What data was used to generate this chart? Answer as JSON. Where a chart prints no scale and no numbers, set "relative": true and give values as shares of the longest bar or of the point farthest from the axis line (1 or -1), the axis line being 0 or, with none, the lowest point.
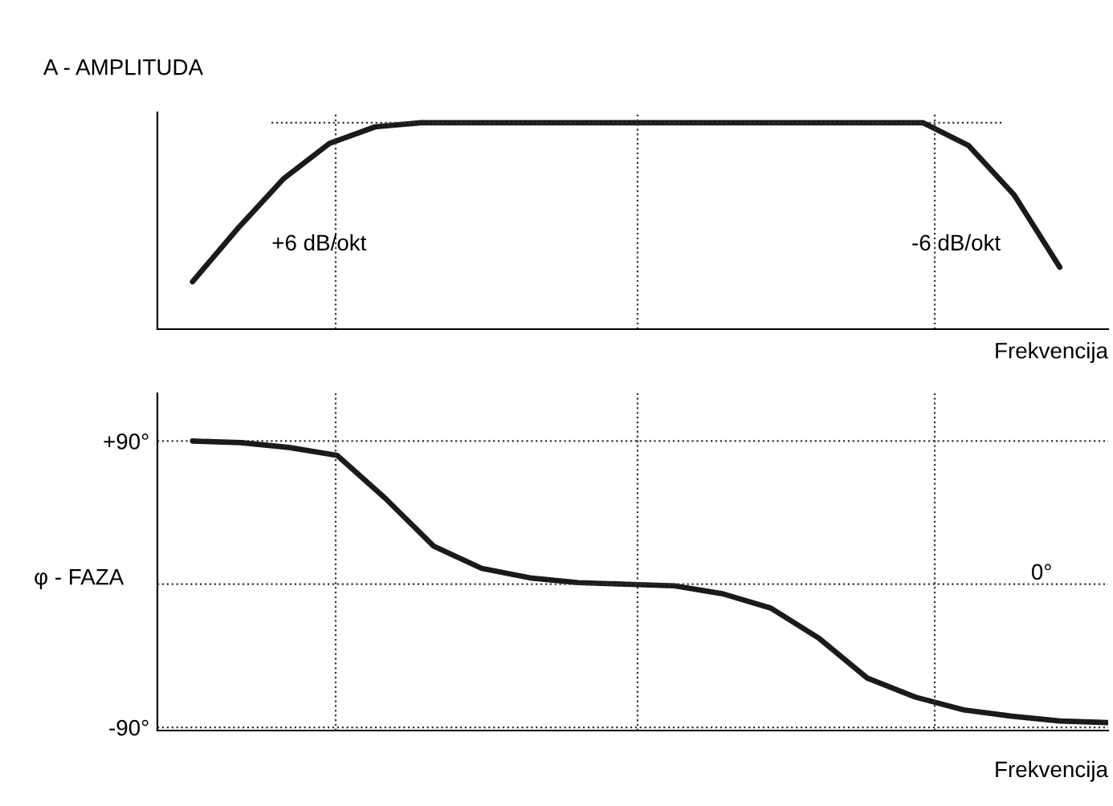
{
  "chart_data": [
    {
      "type": "line",
      "ylabel": "A - AMPLITUDA",
      "xlabel": "Frekvencija",
      "relative": true,
      "categories": [
        null,
        null,
        null,
        null,
        null,
        null,
        null,
        null,
        null,
        null,
        null,
        null,
        null,
        null,
        null,
        null,
        null,
        null,
        null,
        null
      ],
      "tick_labels": false,
      "marker": "none",
      "line_style": "solid",
      "annotations": [
        "+6 dB/okt",
        "-6 dB/okt"
      ],
      "series": [
        {
          "color": "#1a1a1a",
          "values": [
            0.23,
            0.49,
            0.73,
            0.9,
            0.98,
            1,
            1,
            1,
            1,
            1,
            1,
            1,
            1,
            1,
            1,
            1,
            1,
            0.89,
            0.65,
            0.3
          ]
        }
      ]
    },
    {
      "type": "line",
      "ylabel": "φ - FAZA",
      "xlabel": "Frekvencija",
      "categories": [
        null,
        null,
        null,
        null,
        null,
        null,
        null,
        null,
        null,
        null,
        null,
        null,
        null,
        null,
        null,
        null,
        null,
        null,
        null,
        null
      ],
      "ylim": [
        -92,
        120
      ],
      "yticks": [
        {
          "value": 90,
          "label": "+90°"
        },
        {
          "value": -90,
          "label": "-90°"
        }
      ],
      "tick_labels": "y",
      "grid": "y",
      "marker": "none",
      "line_style": "solid",
      "ref_lines": [
        {
          "axis": "y",
          "value": 0,
          "label": "0°"
        }
      ],
      "series": [
        {
          "color": "#1a1a1a",
          "values": [
            90,
            89,
            86,
            81,
            54,
            24,
            10,
            4,
            1,
            0,
            -1,
            -6,
            -15,
            -34,
            -59,
            -71,
            -79,
            -83,
            -86,
            -87
          ]
        }
      ]
    }
  ]
}
